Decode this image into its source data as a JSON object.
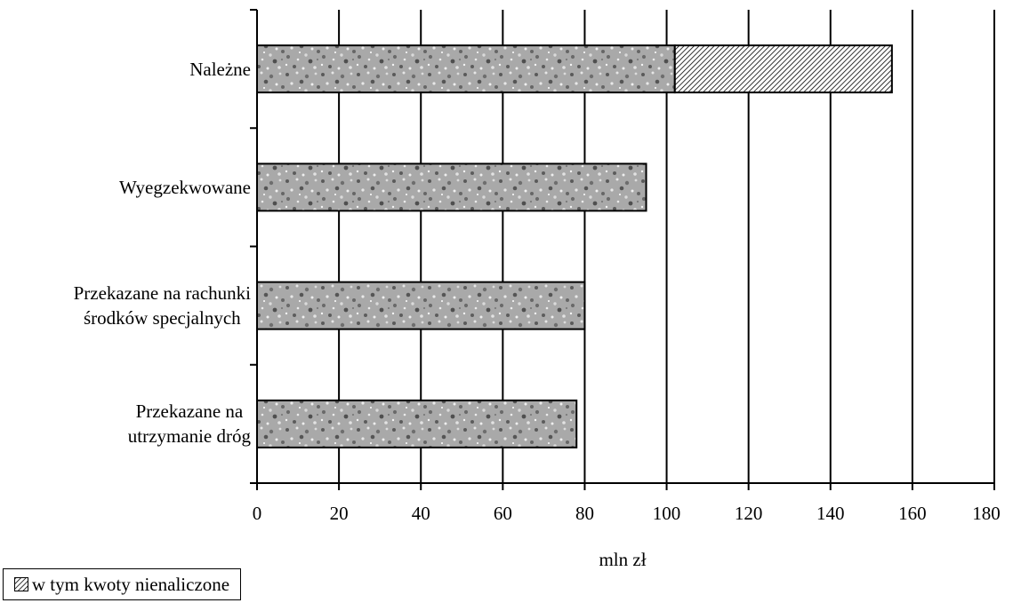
{
  "chart_data": {
    "type": "bar",
    "orientation": "horizontal",
    "stacked": true,
    "categories": [
      "Należne",
      "Wyegzekwowane",
      "Przekazane na rachunki\nśrodków specjalnych",
      "Przekazane na\nutrzymanie dróg"
    ],
    "series": [
      {
        "values": [
          102,
          95,
          80,
          78
        ],
        "pattern": "granite-speckle"
      },
      {
        "name": "w tym kwoty nienaliczone",
        "values": [
          53,
          0,
          0,
          0
        ],
        "pattern": "diagonal-hatch"
      }
    ],
    "xlabel": "mln zł",
    "xlim": [
      0,
      180
    ],
    "xticks": [
      "0",
      "20",
      "40",
      "60",
      "80",
      "100",
      "120",
      "140",
      "160",
      "180"
    ],
    "grid": "vertical",
    "legend": "bottom-left"
  }
}
